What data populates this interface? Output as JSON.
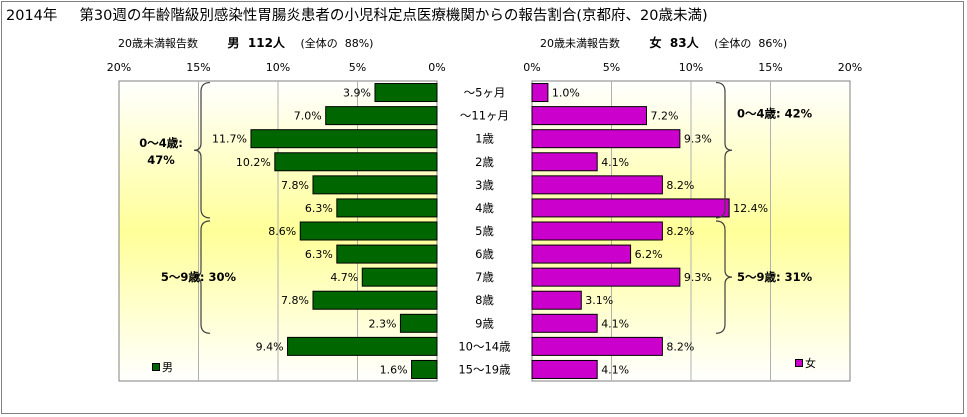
{
  "title": {
    "year": "2014年",
    "text": "第30週の年齢階級別感染性胃腸炎患者の小児科定点医療機関からの報告割合(京都府、20歳未満)"
  },
  "headers": {
    "male": {
      "count_label": "20歳未満報告数",
      "sex": "男",
      "count": "112人",
      "share_label": "(全体の",
      "share": "88%)"
    },
    "female": {
      "count_label": "20歳未満報告数",
      "sex": "女",
      "count": "83人",
      "share_label": "(全体の",
      "share": "86%)"
    }
  },
  "legend": {
    "male": "男",
    "female": "女"
  },
  "colors": {
    "male": "#006600",
    "female": "#cc00cc",
    "bar_border": "#000000",
    "plot_bg_light": "#ffffff",
    "plot_bg_yellow": "#ffff99"
  },
  "chart_data": {
    "type": "bar",
    "orientation": "horizontal",
    "categories": [
      "～5ヶ月",
      "～11ヶ月",
      "1歳",
      "2歳",
      "3歳",
      "4歳",
      "5歳",
      "6歳",
      "7歳",
      "8歳",
      "9歳",
      "10～14歳",
      "15～19歳"
    ],
    "series": [
      {
        "name": "男",
        "values": [
          3.9,
          7.0,
          11.7,
          10.2,
          7.8,
          6.3,
          8.6,
          6.3,
          4.7,
          7.8,
          2.3,
          9.4,
          1.6
        ]
      },
      {
        "name": "女",
        "values": [
          1.0,
          7.2,
          9.3,
          4.1,
          8.2,
          12.4,
          8.2,
          6.2,
          9.3,
          3.1,
          4.1,
          8.2,
          4.1
        ]
      }
    ],
    "value_labels": {
      "male": [
        "3.9%",
        "7.0%",
        "11.7%",
        "10.2%",
        "7.8%",
        "6.3%",
        "8.6%",
        "6.3%",
        "4.7%",
        "7.8%",
        "2.3%",
        "9.4%",
        "1.6%"
      ],
      "female": [
        "1.0%",
        "7.2%",
        "9.3%",
        "4.1%",
        "8.2%",
        "12.4%",
        "8.2%",
        "6.2%",
        "9.3%",
        "3.1%",
        "4.1%",
        "8.2%",
        "4.1%"
      ]
    },
    "xlim": [
      0,
      20
    ],
    "male_axis_reversed": true,
    "ticks": [
      0,
      5,
      10,
      15,
      20
    ],
    "tick_labels": [
      "0%",
      "5%",
      "10%",
      "15%",
      "20%"
    ],
    "grid": true,
    "legend_position": "bottom-left",
    "annotations": {
      "male": [
        {
          "range": [
            0,
            5
          ],
          "label": "0～4歳:",
          "value": "47%"
        },
        {
          "range": [
            6,
            10
          ],
          "label": "5～9歳:",
          "value": "30%"
        }
      ],
      "female": [
        {
          "range": [
            0,
            5
          ],
          "label": "0～4歳:",
          "value": "42%"
        },
        {
          "range": [
            6,
            10
          ],
          "label": "5～9歳:",
          "value": "31%"
        }
      ]
    }
  }
}
